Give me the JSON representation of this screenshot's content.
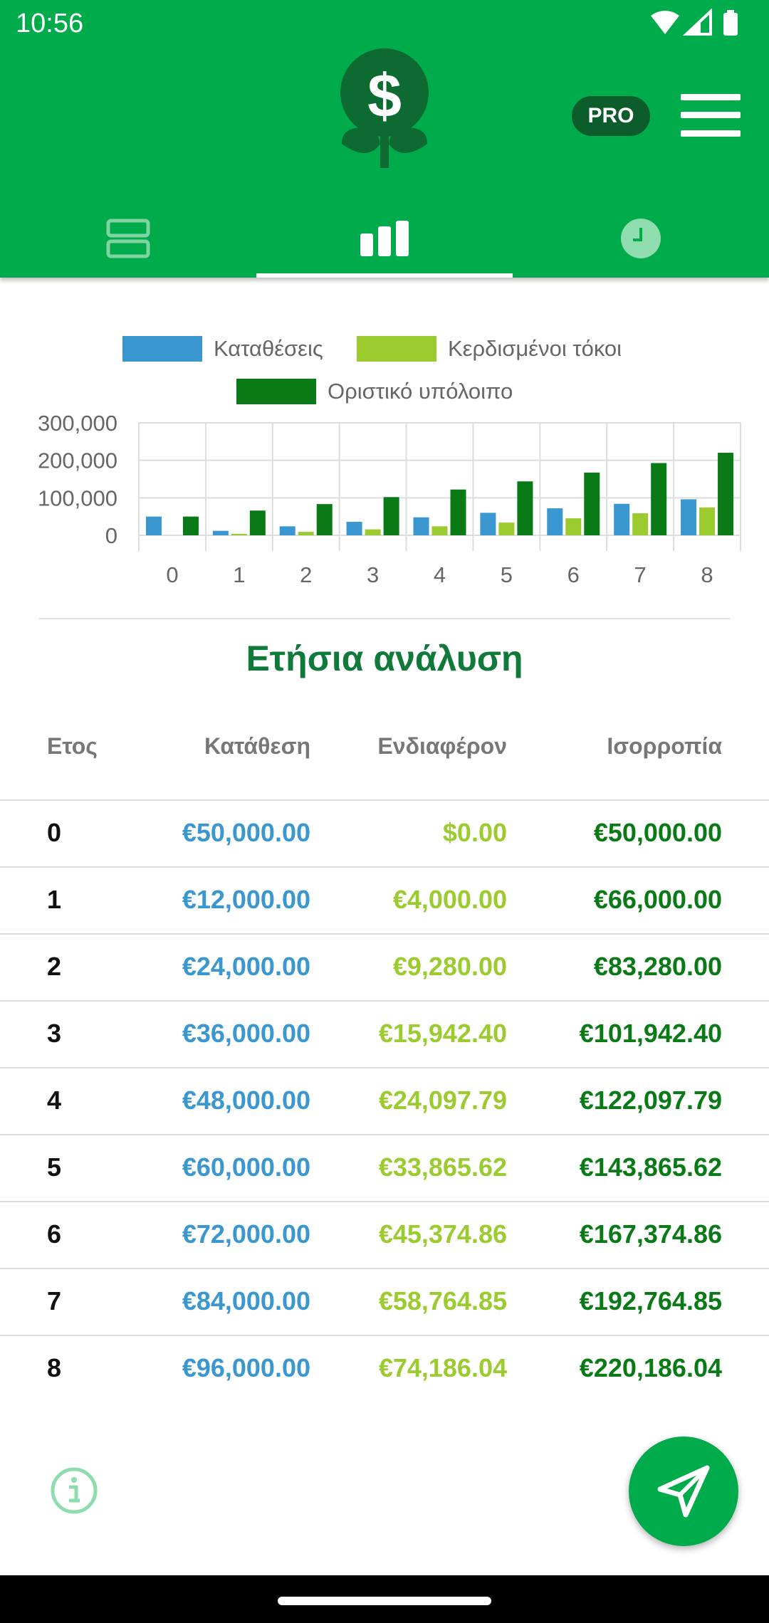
{
  "status_bar": {
    "time": "10:56"
  },
  "header": {
    "pro_label": "PRO",
    "tabs": [
      {
        "name": "list"
      },
      {
        "name": "chart",
        "active": true
      },
      {
        "name": "history"
      }
    ]
  },
  "colors": {
    "brand_green": "#00ab4b",
    "deposits": "#3a97d0",
    "interest": "#9ccb2f",
    "balance": "#0a7a16",
    "title_green": "#107a3a"
  },
  "chart_data": {
    "type": "bar",
    "legend": [
      "Καταθέσεις",
      "Κερδισμένοι τόκοι",
      "Οριστικό υπόλοιπο"
    ],
    "categories": [
      "0",
      "1",
      "2",
      "3",
      "4",
      "5",
      "6",
      "7",
      "8"
    ],
    "y_ticks": [
      "300,000",
      "200,000",
      "100,000",
      "0"
    ],
    "ylim": [
      0,
      300000
    ],
    "series": [
      {
        "name": "Καταθέσεις",
        "color": "#3a97d0",
        "values": [
          50000,
          12000,
          24000,
          36000,
          48000,
          60000,
          72000,
          84000,
          96000
        ]
      },
      {
        "name": "Κερδισμένοι τόκοι",
        "color": "#9ccb2f",
        "values": [
          0,
          4000,
          9280,
          15942.4,
          24097.79,
          33865.62,
          45374.86,
          58764.85,
          74186.04
        ]
      },
      {
        "name": "Οριστικό υπόλοιπο",
        "color": "#0a7a16",
        "values": [
          50000,
          66000,
          83280,
          101942.4,
          122097.79,
          143865.62,
          167374.86,
          192764.85,
          220186.04
        ]
      }
    ],
    "grid": true
  },
  "section_title": "Ετήσια ανάλυση",
  "table": {
    "headers": {
      "year": "Ετος",
      "deposit": "Κατάθεση",
      "interest": "Ενδιαφέρον",
      "balance": "Ισορροπία"
    },
    "rows": [
      {
        "year": "0",
        "deposit": "€50,000.00",
        "interest": "$0.00",
        "balance": "€50,000.00"
      },
      {
        "year": "1",
        "deposit": "€12,000.00",
        "interest": "€4,000.00",
        "balance": "€66,000.00"
      },
      {
        "year": "2",
        "deposit": "€24,000.00",
        "interest": "€9,280.00",
        "balance": "€83,280.00"
      },
      {
        "year": "3",
        "deposit": "€36,000.00",
        "interest": "€15,942.40",
        "balance": "€101,942.40"
      },
      {
        "year": "4",
        "deposit": "€48,000.00",
        "interest": "€24,097.79",
        "balance": "€122,097.79"
      },
      {
        "year": "5",
        "deposit": "€60,000.00",
        "interest": "€33,865.62",
        "balance": "€143,865.62"
      },
      {
        "year": "6",
        "deposit": "€72,000.00",
        "interest": "€45,374.86",
        "balance": "€167,374.86"
      },
      {
        "year": "7",
        "deposit": "€84,000.00",
        "interest": "€58,764.85",
        "balance": "€192,764.85"
      },
      {
        "year": "8",
        "deposit": "€96,000.00",
        "interest": "€74,186.04",
        "balance": "€220,186.04"
      }
    ]
  },
  "icons": {
    "info": "info-icon",
    "send": "send-icon",
    "menu": "menu-icon",
    "logo": "money-plant-logo-icon"
  }
}
